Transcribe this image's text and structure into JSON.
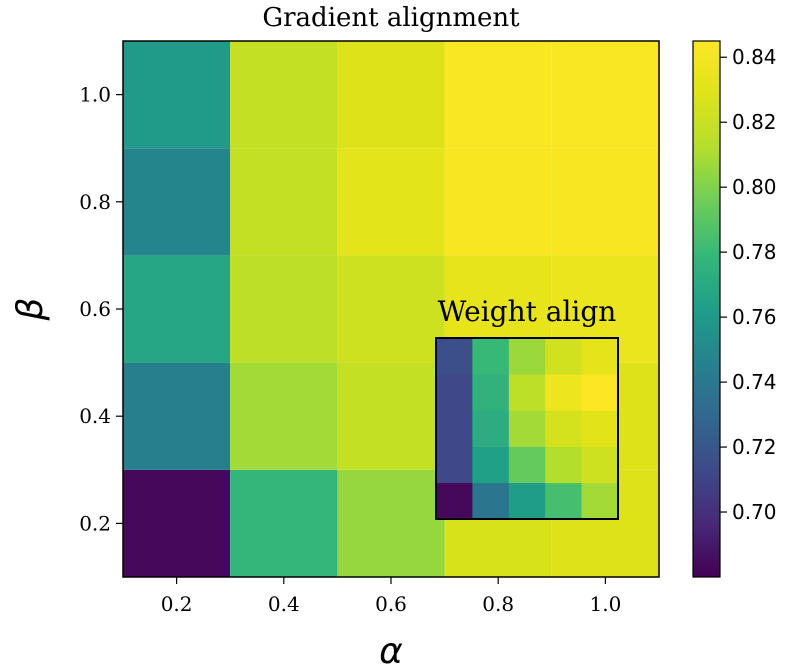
{
  "chart_data": [
    {
      "type": "heatmap",
      "title": "Gradient alignment",
      "xlabel": "α",
      "ylabel": "β",
      "x": [
        0.2,
        0.4,
        0.6,
        0.8,
        1.0
      ],
      "y": [
        0.2,
        0.4,
        0.6,
        0.8,
        1.0
      ],
      "xlim": [
        0.1,
        1.1
      ],
      "ylim": [
        0.1,
        1.1
      ],
      "xticks": [
        "0.2",
        "0.4",
        "0.6",
        "0.8",
        "1.0"
      ],
      "yticks": [
        "0.2",
        "0.4",
        "0.6",
        "0.8",
        "1.0"
      ],
      "values": [
        [
          0.683,
          0.778,
          0.805,
          0.826,
          0.828
        ],
        [
          0.744,
          0.808,
          0.818,
          0.828,
          0.828
        ],
        [
          0.768,
          0.816,
          0.822,
          0.833,
          0.835
        ],
        [
          0.748,
          0.818,
          0.831,
          0.842,
          0.842
        ],
        [
          0.761,
          0.818,
          0.828,
          0.843,
          0.843
        ]
      ],
      "colormap": "viridis",
      "colorbar": {
        "range": [
          0.68,
          0.845
        ],
        "ticks": [
          "0.70",
          "0.72",
          "0.74",
          "0.76",
          "0.78",
          "0.80",
          "0.82",
          "0.84"
        ]
      },
      "grid": false
    },
    {
      "type": "heatmap",
      "title": "Weight align",
      "x": [
        0.2,
        0.4,
        0.6,
        0.8,
        1.0
      ],
      "y": [
        0.2,
        0.4,
        0.6,
        0.8,
        1.0
      ],
      "values": [
        [
          0.683,
          0.738,
          0.762,
          0.784,
          0.808
        ],
        [
          0.712,
          0.764,
          0.793,
          0.812,
          0.822
        ],
        [
          0.712,
          0.772,
          0.808,
          0.824,
          0.83
        ],
        [
          0.712,
          0.776,
          0.816,
          0.836,
          0.845
        ],
        [
          0.716,
          0.78,
          0.806,
          0.823,
          0.832
        ]
      ],
      "colormap": "viridis",
      "placement": "inset lower-right"
    }
  ]
}
